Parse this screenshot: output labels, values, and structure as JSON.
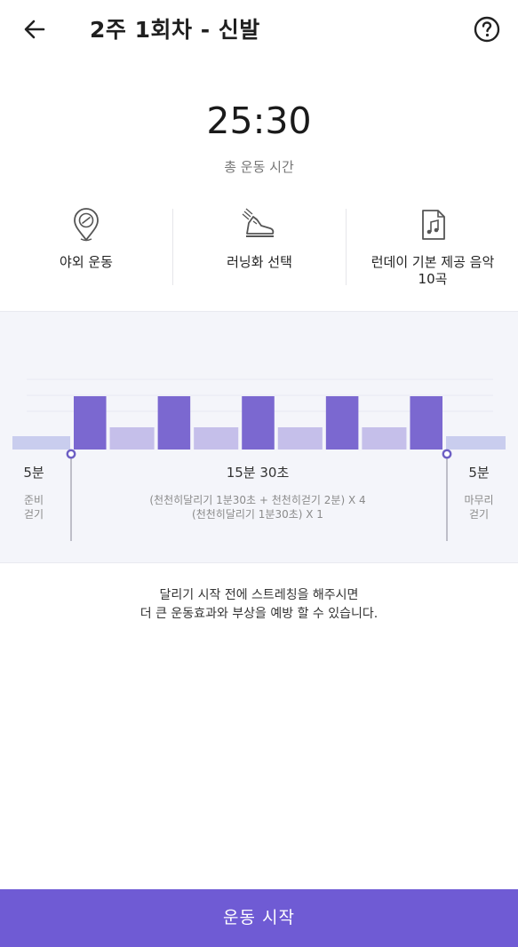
{
  "header": {
    "title": "2주 1회차 - 신발"
  },
  "summary": {
    "total_time": "25:30",
    "total_label": "총 운동 시간"
  },
  "options": [
    {
      "icon": "outdoor-location-icon",
      "label": "야외 운동"
    },
    {
      "icon": "running-shoe-icon",
      "label": "러닝화 선택"
    },
    {
      "icon": "music-file-icon",
      "label": "런데이 기본 제공 음악\n10곡"
    }
  ],
  "schedule": {
    "warmup": {
      "duration": "5분",
      "label": "준비\n걷기"
    },
    "main": {
      "duration": "15분 30초",
      "description": "(천천히달리기 1분30초 + 천천히걷기 2분) X 4\n(천천히달리기 1분30초) X 1"
    },
    "cooldown": {
      "duration": "5분",
      "label": "마무리\n걷기"
    }
  },
  "chart_data": {
    "type": "bar",
    "segments": [
      {
        "kind": "walk",
        "minutes": 5
      },
      {
        "kind": "run",
        "minutes": 1.5
      },
      {
        "kind": "walk",
        "minutes": 2
      },
      {
        "kind": "run",
        "minutes": 1.5
      },
      {
        "kind": "walk",
        "minutes": 2
      },
      {
        "kind": "run",
        "minutes": 1.5
      },
      {
        "kind": "walk",
        "minutes": 2
      },
      {
        "kind": "run",
        "minutes": 1.5
      },
      {
        "kind": "walk",
        "minutes": 2
      },
      {
        "kind": "run",
        "minutes": 1.5
      },
      {
        "kind": "walk",
        "minutes": 5
      }
    ],
    "colors": {
      "run": "#7b68d0",
      "walk": "#c5bfea",
      "warmup": "#c9cdee",
      "marker": "#6d5fc4"
    }
  },
  "tip": {
    "text": "달리기 시작 전에 스트레칭을 해주시면\n더 큰 운동효과와 부상을 예방 할 수 있습니다."
  },
  "footer": {
    "start_label": "운동 시작"
  },
  "colors": {
    "accent": "#6f5bd4"
  }
}
